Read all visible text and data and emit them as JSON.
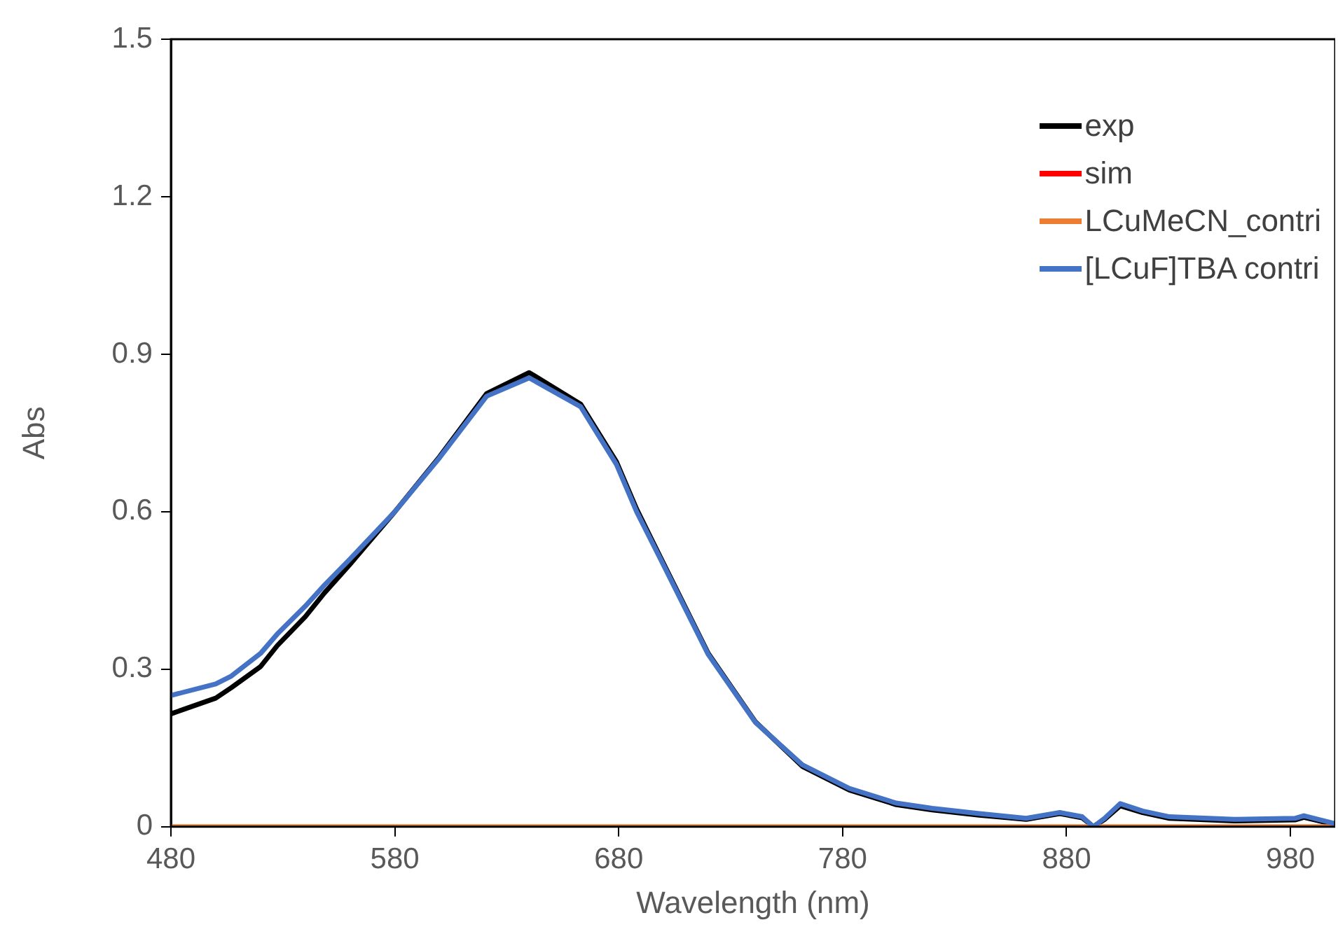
{
  "chart_data": {
    "type": "line",
    "xlabel": "Wavelength (nm)",
    "ylabel": "Abs",
    "xlim": [
      480,
      1000
    ],
    "xticks": [
      480,
      580,
      680,
      780,
      880,
      980
    ],
    "ylim": [
      0,
      1.5
    ],
    "yticks": [
      0,
      0.3,
      0.6,
      0.9,
      1.2,
      1.5
    ],
    "grid": false,
    "legend": "top right",
    "marker": "none",
    "line_style": "solid",
    "x": [
      480,
      500,
      507,
      520,
      527.5,
      540,
      548.5,
      560,
      580,
      600,
      621,
      640,
      663,
      679,
      688,
      699,
      720,
      741,
      762,
      783,
      804,
      820,
      841,
      862,
      877,
      887,
      892,
      897,
      904,
      914,
      926,
      955,
      982,
      986,
      999
    ],
    "series": [
      {
        "name": "exp",
        "color": "#000000",
        "values": [
          0.215,
          0.245,
          0.265,
          0.305,
          0.345,
          0.4,
          0.445,
          0.5,
          0.6,
          0.705,
          0.825,
          0.865,
          0.805,
          0.695,
          0.605,
          0.51,
          0.33,
          0.2,
          0.115,
          0.07,
          0.042,
          0.032,
          0.022,
          0.014,
          0.025,
          0.017,
          0.0,
          0.014,
          0.04,
          0.027,
          0.016,
          0.011,
          0.013,
          0.018,
          0.005
        ]
      },
      {
        "name": "sim",
        "color": "#ff0000",
        "values": [
          null,
          null,
          null,
          null,
          null,
          null,
          null,
          null,
          null,
          null,
          null,
          null,
          null,
          null,
          null,
          null,
          null,
          null,
          null,
          null,
          null,
          null,
          null,
          null,
          null,
          null,
          null,
          null,
          null,
          null,
          null,
          null,
          null,
          null,
          null
        ]
      },
      {
        "name": "LCuMeCN_contri",
        "color": "#ed7d31",
        "values": [
          0,
          0,
          0,
          0,
          0,
          0,
          0,
          0,
          0,
          0,
          0,
          0,
          0,
          0,
          0,
          0,
          0,
          0,
          0,
          0,
          0,
          0,
          0,
          0,
          0,
          0,
          0,
          0,
          0,
          0,
          0,
          0,
          0,
          0,
          0
        ]
      },
      {
        "name": "[LCuF]TBA contri",
        "color": "#4472c4",
        "values": [
          0.25,
          0.272,
          0.287,
          0.33,
          0.367,
          0.42,
          0.46,
          0.51,
          0.6,
          0.703,
          0.82,
          0.855,
          0.8,
          0.69,
          0.6,
          0.507,
          0.328,
          0.199,
          0.118,
          0.073,
          0.045,
          0.035,
          0.025,
          0.016,
          0.027,
          0.019,
          0.0,
          0.016,
          0.044,
          0.03,
          0.019,
          0.014,
          0.016,
          0.021,
          0.007
        ]
      }
    ]
  }
}
